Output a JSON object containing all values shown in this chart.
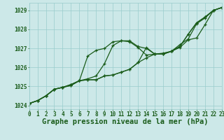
{
  "xlabel": "Graphe pression niveau de la mer (hPa)",
  "ylim": [
    1023.8,
    1029.4
  ],
  "xlim": [
    0,
    23
  ],
  "yticks": [
    1024,
    1025,
    1026,
    1027,
    1028,
    1029
  ],
  "xticks": [
    0,
    1,
    2,
    3,
    4,
    5,
    6,
    7,
    8,
    9,
    10,
    11,
    12,
    13,
    14,
    15,
    16,
    17,
    18,
    19,
    20,
    21,
    22,
    23
  ],
  "bg_color": "#cce8e8",
  "grid_color": "#99cccc",
  "line_color": "#1a5c1a",
  "series": [
    [
      1024.1,
      1024.25,
      1024.5,
      1024.85,
      1024.95,
      1025.05,
      1025.3,
      1026.6,
      1026.9,
      1027.0,
      1027.35,
      1027.4,
      1027.35,
      1027.05,
      1026.65,
      1026.7,
      1026.75,
      1026.85,
      1027.2,
      1027.5,
      1028.3,
      1028.6,
      1029.0,
      1029.15
    ],
    [
      1024.1,
      1024.25,
      1024.5,
      1024.85,
      1024.95,
      1025.05,
      1025.3,
      1025.4,
      1025.55,
      1026.2,
      1027.15,
      1027.4,
      1027.4,
      1027.1,
      1027.0,
      1026.7,
      1026.7,
      1026.85,
      1027.05,
      1027.45,
      1027.55,
      1028.25,
      1029.0,
      1029.15
    ],
    [
      1024.1,
      1024.25,
      1024.5,
      1024.85,
      1024.95,
      1025.1,
      1025.3,
      1025.35,
      1025.35,
      1025.55,
      1025.6,
      1025.75,
      1025.9,
      1026.25,
      1027.05,
      1026.7,
      1026.7,
      1026.85,
      1027.1,
      1027.75,
      1028.35,
      1028.65,
      1029.0,
      1029.15
    ],
    [
      1024.1,
      1024.25,
      1024.5,
      1024.85,
      1024.95,
      1025.1,
      1025.3,
      1025.35,
      1025.35,
      1025.55,
      1025.6,
      1025.75,
      1025.9,
      1026.25,
      1026.5,
      1026.7,
      1026.7,
      1026.85,
      1027.1,
      1027.75,
      1028.35,
      1028.65,
      1029.0,
      1029.15
    ]
  ],
  "marker": "+",
  "markersize": 3.5,
  "linewidth": 0.9,
  "title_fontsize": 7.5,
  "tick_fontsize": 5.5,
  "font_color": "#1a5c1a",
  "font_family": "monospace"
}
